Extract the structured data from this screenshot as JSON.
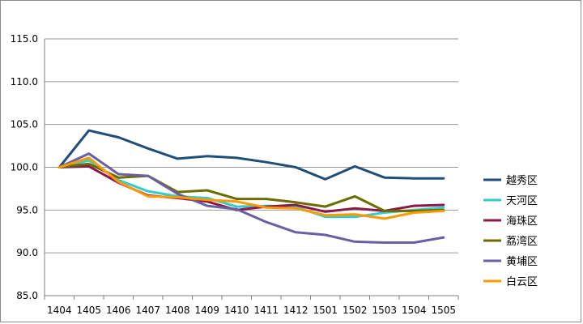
{
  "chart_data": {
    "type": "line",
    "title": "",
    "xlabel": "",
    "ylabel": "",
    "x": [
      "1404",
      "1405",
      "1406",
      "1407",
      "1408",
      "1409",
      "1410",
      "1411",
      "1412",
      "1501",
      "1502",
      "1503",
      "1504",
      "1505"
    ],
    "ylim": [
      85.0,
      115.0
    ],
    "yticks": [
      "85.0",
      "90.0",
      "95.0",
      "100.0",
      "105.0",
      "110.0",
      "115.0"
    ],
    "grid": true,
    "legend_position": "right",
    "series": [
      {
        "name": "越秀区",
        "color": "#1f4e79",
        "values": [
          100.0,
          104.3,
          103.5,
          102.2,
          101.0,
          101.3,
          101.1,
          100.6,
          100.0,
          98.6,
          100.1,
          98.8,
          98.7,
          98.7
        ]
      },
      {
        "name": "天河区",
        "color": "#33cccc",
        "values": [
          100.0,
          100.8,
          98.5,
          97.2,
          96.6,
          96.4,
          95.4,
          95.5,
          95.4,
          94.2,
          94.2,
          94.7,
          95.0,
          95.3
        ]
      },
      {
        "name": "海珠区",
        "color": "#8b1a4a",
        "values": [
          100.0,
          100.1,
          98.2,
          96.7,
          96.4,
          96.0,
          95.0,
          95.4,
          95.6,
          94.8,
          95.2,
          94.9,
          95.5,
          95.6
        ]
      },
      {
        "name": "荔湾区",
        "color": "#6b6b00",
        "values": [
          100.0,
          100.4,
          98.8,
          99.0,
          97.1,
          97.3,
          96.3,
          96.3,
          95.9,
          95.4,
          96.6,
          94.9,
          94.9,
          95.0
        ]
      },
      {
        "name": "黄埔区",
        "color": "#6a5fa0",
        "values": [
          100.0,
          101.6,
          99.2,
          99.0,
          96.9,
          95.5,
          95.1,
          93.6,
          92.4,
          92.1,
          91.3,
          91.2,
          91.2,
          91.8
        ]
      },
      {
        "name": "白云区",
        "color": "#ff9900",
        "values": [
          100.0,
          101.1,
          98.3,
          96.6,
          96.5,
          96.2,
          96.0,
          95.3,
          95.2,
          94.4,
          94.5,
          94.0,
          94.7,
          94.9
        ]
      }
    ]
  }
}
